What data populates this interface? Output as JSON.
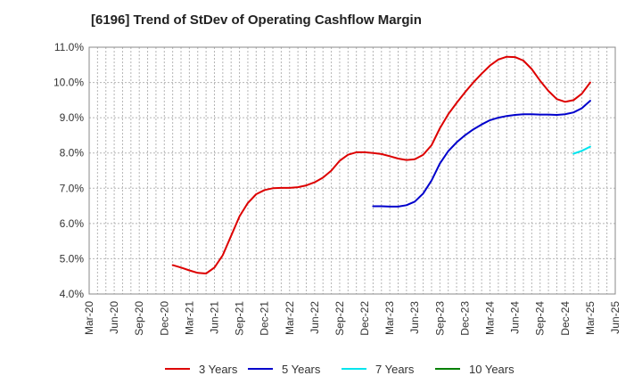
{
  "chart_data": {
    "type": "line",
    "title": "[6196]  Trend of StDev of Operating Cashflow Margin",
    "xlabel": "",
    "ylabel": "",
    "ylim": [
      4.0,
      11.0
    ],
    "y_ticks": [
      "4.0%",
      "5.0%",
      "6.0%",
      "7.0%",
      "8.0%",
      "9.0%",
      "10.0%",
      "11.0%"
    ],
    "x_ticks": [
      "Mar-20",
      "Jun-20",
      "Sep-20",
      "Dec-20",
      "Mar-21",
      "Jun-21",
      "Sep-21",
      "Dec-21",
      "Mar-22",
      "Jun-22",
      "Sep-22",
      "Dec-22",
      "Mar-23",
      "Jun-23",
      "Sep-23",
      "Dec-23",
      "Mar-24",
      "Jun-24",
      "Sep-24",
      "Dec-24",
      "Mar-25",
      "Jun-25"
    ],
    "x_range": [
      "Mar-20",
      "Jun-25"
    ],
    "grid": true,
    "legend_position": "bottom",
    "series": [
      {
        "name": "3 Years",
        "color": "#dd0000",
        "points": [
          [
            "Jan-21",
            4.82
          ],
          [
            "Feb-21",
            4.75
          ],
          [
            "Mar-21",
            4.67
          ],
          [
            "Apr-21",
            4.6
          ],
          [
            "May-21",
            4.58
          ],
          [
            "Jun-21",
            4.75
          ],
          [
            "Jul-21",
            5.1
          ],
          [
            "Aug-21",
            5.65
          ],
          [
            "Sep-21",
            6.2
          ],
          [
            "Oct-21",
            6.58
          ],
          [
            "Nov-21",
            6.83
          ],
          [
            "Dec-21",
            6.95
          ],
          [
            "Jan-22",
            7.0
          ],
          [
            "Feb-22",
            7.01
          ],
          [
            "Mar-22",
            7.01
          ],
          [
            "Apr-22",
            7.03
          ],
          [
            "May-22",
            7.08
          ],
          [
            "Jun-22",
            7.17
          ],
          [
            "Jul-22",
            7.3
          ],
          [
            "Aug-22",
            7.5
          ],
          [
            "Sep-22",
            7.78
          ],
          [
            "Oct-22",
            7.95
          ],
          [
            "Nov-22",
            8.02
          ],
          [
            "Dec-22",
            8.02
          ],
          [
            "Jan-23",
            8.0
          ],
          [
            "Feb-23",
            7.97
          ],
          [
            "Mar-23",
            7.91
          ],
          [
            "Apr-23",
            7.84
          ],
          [
            "May-23",
            7.8
          ],
          [
            "Jun-23",
            7.82
          ],
          [
            "Jul-23",
            7.95
          ],
          [
            "Aug-23",
            8.22
          ],
          [
            "Sep-23",
            8.7
          ],
          [
            "Oct-23",
            9.1
          ],
          [
            "Nov-23",
            9.42
          ],
          [
            "Dec-23",
            9.72
          ],
          [
            "Jan-24",
            10.0
          ],
          [
            "Feb-24",
            10.25
          ],
          [
            "Mar-24",
            10.48
          ],
          [
            "Apr-24",
            10.65
          ],
          [
            "May-24",
            10.73
          ],
          [
            "Jun-24",
            10.72
          ],
          [
            "Jul-24",
            10.62
          ],
          [
            "Aug-24",
            10.38
          ],
          [
            "Sep-24",
            10.05
          ],
          [
            "Oct-24",
            9.76
          ],
          [
            "Nov-24",
            9.53
          ],
          [
            "Dec-24",
            9.45
          ],
          [
            "Jan-25",
            9.5
          ],
          [
            "Feb-25",
            9.68
          ],
          [
            "Mar-25",
            10.0
          ]
        ]
      },
      {
        "name": "5 Years",
        "color": "#0000cc",
        "points": [
          [
            "Jan-23",
            6.49
          ],
          [
            "Feb-23",
            6.49
          ],
          [
            "Mar-23",
            6.48
          ],
          [
            "Apr-23",
            6.48
          ],
          [
            "May-23",
            6.52
          ],
          [
            "Jun-23",
            6.62
          ],
          [
            "Jul-23",
            6.85
          ],
          [
            "Aug-23",
            7.22
          ],
          [
            "Sep-23",
            7.7
          ],
          [
            "Oct-23",
            8.05
          ],
          [
            "Nov-23",
            8.3
          ],
          [
            "Dec-23",
            8.5
          ],
          [
            "Jan-24",
            8.67
          ],
          [
            "Feb-24",
            8.81
          ],
          [
            "Mar-24",
            8.93
          ],
          [
            "Apr-24",
            9.0
          ],
          [
            "May-24",
            9.05
          ],
          [
            "Jun-24",
            9.08
          ],
          [
            "Jul-24",
            9.1
          ],
          [
            "Aug-24",
            9.1
          ],
          [
            "Sep-24",
            9.09
          ],
          [
            "Oct-24",
            9.09
          ],
          [
            "Nov-24",
            9.08
          ],
          [
            "Dec-24",
            9.1
          ],
          [
            "Jan-25",
            9.15
          ],
          [
            "Feb-25",
            9.27
          ],
          [
            "Mar-25",
            9.48
          ]
        ]
      },
      {
        "name": "7 Years",
        "color": "#00e5ee",
        "points": [
          [
            "Jan-25",
            7.98
          ],
          [
            "Feb-25",
            8.06
          ],
          [
            "Mar-25",
            8.18
          ]
        ]
      },
      {
        "name": "10 Years",
        "color": "#008000",
        "points": []
      }
    ]
  }
}
